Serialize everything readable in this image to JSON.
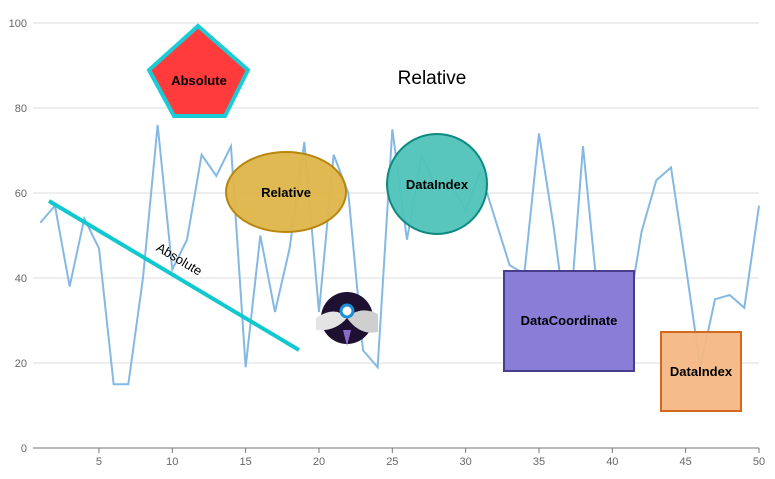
{
  "chart_data": {
    "type": "line",
    "title": "",
    "xlabel": "",
    "ylabel": "",
    "xlim": [
      1,
      50
    ],
    "ylim": [
      0,
      100
    ],
    "grid": "horizontal",
    "x_ticks": [
      "5",
      "10",
      "15",
      "20",
      "25",
      "30",
      "35",
      "40",
      "45",
      "50"
    ],
    "y_ticks": [
      "0",
      "20",
      "40",
      "60",
      "80",
      "100"
    ],
    "series": [
      {
        "color": "#85b9e3",
        "x": [
          1,
          2,
          3,
          4,
          5,
          6,
          7,
          8,
          9,
          10,
          11,
          12,
          13,
          14,
          15,
          16,
          17,
          18,
          19,
          20,
          21,
          22,
          23,
          24,
          25,
          26,
          27,
          28,
          29,
          30,
          31,
          32,
          33,
          34,
          35,
          36,
          37,
          38,
          39,
          40,
          41,
          42,
          43,
          44,
          45,
          46,
          47,
          48,
          49,
          50
        ],
        "y": [
          53,
          57,
          38,
          54,
          47,
          15,
          15,
          40,
          76,
          42,
          49,
          69,
          64,
          71,
          19,
          50,
          32,
          47,
          72,
          32,
          69,
          60,
          23,
          19,
          75,
          49,
          69,
          61,
          62,
          56,
          65,
          54,
          43,
          41,
          74,
          52,
          26,
          71,
          36,
          28,
          30,
          51,
          63,
          66,
          43,
          19,
          35,
          36,
          33,
          57
        ]
      }
    ],
    "annotations": [
      {
        "shape": "pentagon",
        "label": "Absolute",
        "fill": "#ff3b3b",
        "stroke": "#19ccd6"
      },
      {
        "shape": "text",
        "label": "Relative"
      },
      {
        "shape": "ellipse",
        "label": "Relative",
        "fill": "#dfb54a",
        "stroke": "#b8860b"
      },
      {
        "shape": "circle",
        "label": "DataIndex",
        "fill": "#4fc3b8",
        "stroke": "#0d8a80"
      },
      {
        "shape": "line",
        "label": "Absolute",
        "stroke": "#10c8d0"
      },
      {
        "shape": "image",
        "label": ""
      },
      {
        "shape": "rectangle",
        "label": "DataCoordinate",
        "fill": "#8a7dd8",
        "stroke": "#483d8b"
      },
      {
        "shape": "rectangle",
        "label": "DataIndex",
        "fill": "#f4b784",
        "stroke": "#d2691e"
      }
    ]
  }
}
